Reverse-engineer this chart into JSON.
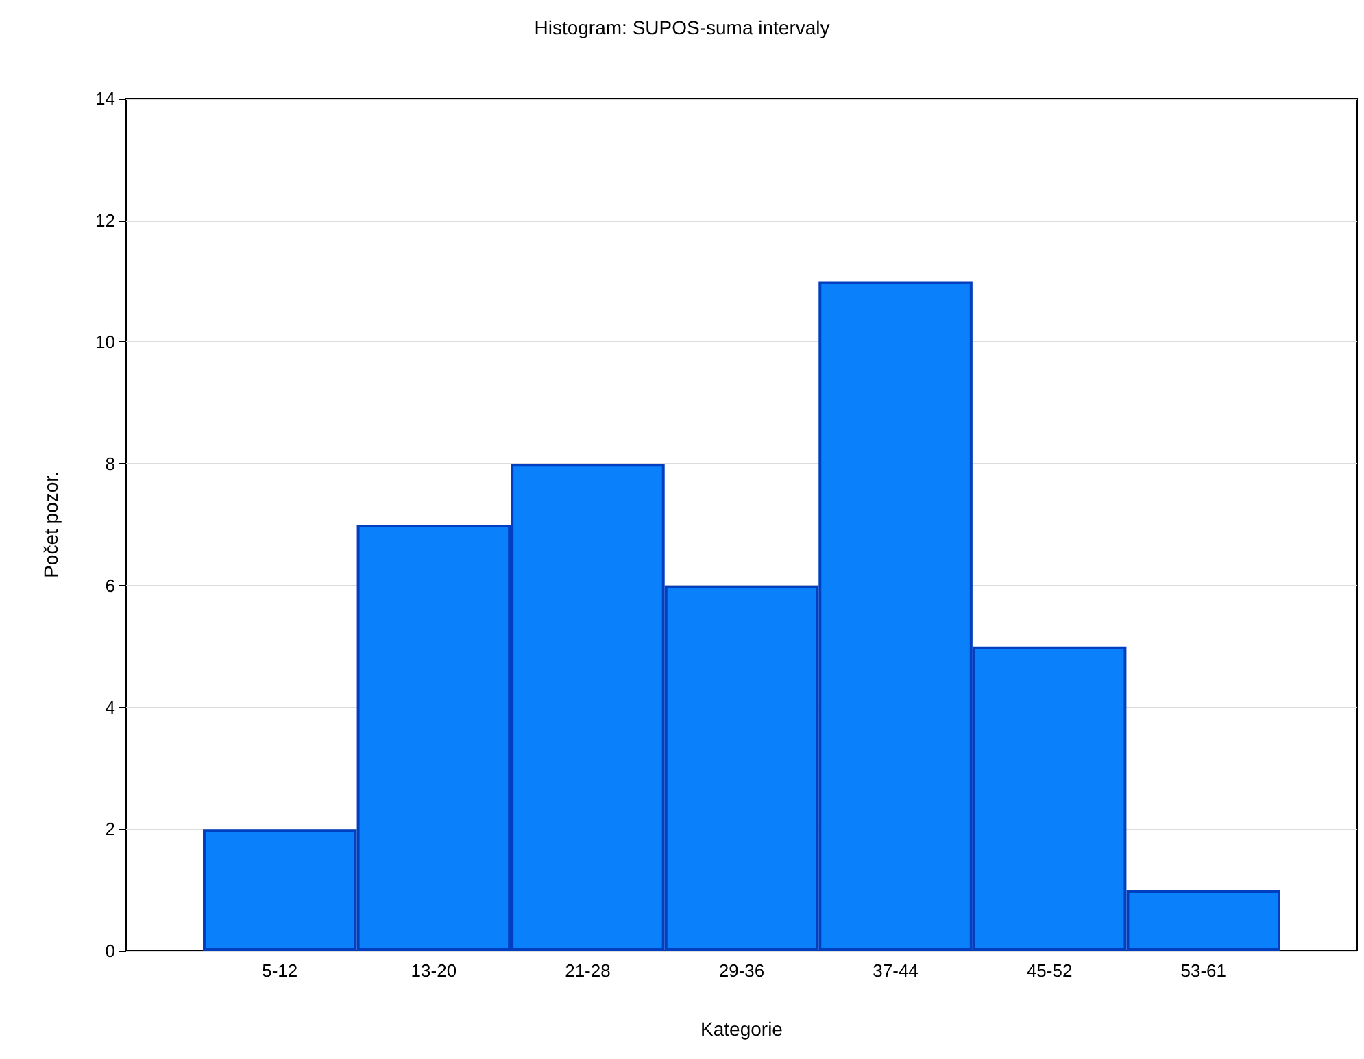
{
  "chart_data": {
    "type": "bar",
    "title": "Histogram: SUPOS-suma intervaly",
    "xlabel": "Kategorie",
    "ylabel": "Počet pozor.",
    "categories": [
      "5-12",
      "13-20",
      "21-28",
      "29-36",
      "37-44",
      "45-52",
      "53-61"
    ],
    "values": [
      2,
      7,
      8,
      6,
      11,
      5,
      1
    ],
    "color": "#0a80fa",
    "ylim": [
      0,
      14
    ],
    "yticks": [
      0,
      2,
      4,
      6,
      8,
      10,
      12,
      14
    ],
    "grid": "y"
  }
}
